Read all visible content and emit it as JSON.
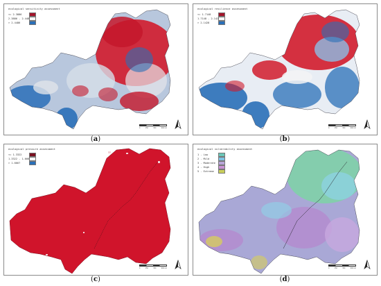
{
  "panels": [
    {
      "id": "a",
      "caption_letter": "a",
      "legend": {
        "title": "ecological sensitivity assessment",
        "items": [
          {
            "label": "<= 2.3886",
            "color": "#a3142b"
          },
          {
            "label": "2.3886 - 2.4486",
            "color": "#f7f7f7"
          },
          {
            "label": "> 2.4486",
            "color": "#2a6fb8"
          }
        ]
      }
    },
    {
      "id": "b",
      "caption_letter": "b",
      "legend": {
        "title": "ecological resilience assessment",
        "items": [
          {
            "label": "<= 1.7148",
            "color": "#a3142b"
          },
          {
            "label": "1.7148 - 2.1428",
            "color": "#f7f7f7"
          },
          {
            "label": "> 2.1428",
            "color": "#2a6fb8"
          }
        ]
      }
    },
    {
      "id": "c",
      "caption_letter": "c",
      "legend": {
        "title": "ecological pressure assessment",
        "items": [
          {
            "label": "<= 1.3322",
            "color": "#7a1020"
          },
          {
            "label": "1.3322 - 1.6667",
            "color": "#f7f7f7"
          },
          {
            "label": "> 1.6667",
            "color": "#2a6fb8"
          }
        ]
      }
    },
    {
      "id": "d",
      "caption_letter": "d",
      "legend": {
        "title": "ecological vulnerability assessment",
        "items": [
          {
            "label": "1 - Low",
            "color": "#6bc7b8"
          },
          {
            "label": "2 - Mild",
            "color": "#7fc4e4"
          },
          {
            "label": "3 - Moderate",
            "color": "#b9a6d9"
          },
          {
            "label": "4 - High",
            "color": "#c992d4"
          },
          {
            "label": "5 - Extreme",
            "color": "#c9cf5a"
          }
        ]
      }
    }
  ],
  "scale": {
    "ticks": [
      "0",
      "150",
      "300",
      "600 km"
    ]
  },
  "north_label": "N",
  "colors": {
    "red": "#d11b2c",
    "dark_red": "#a3142b",
    "blue": "#2a6fb8",
    "light_blue": "#8fb5dc",
    "pale": "#e9edf2",
    "pressure_red": "#d0142b",
    "vuln_green": "#7fd0a8",
    "vuln_purple": "#b48ccf",
    "vuln_yellow": "#d8cf58"
  }
}
